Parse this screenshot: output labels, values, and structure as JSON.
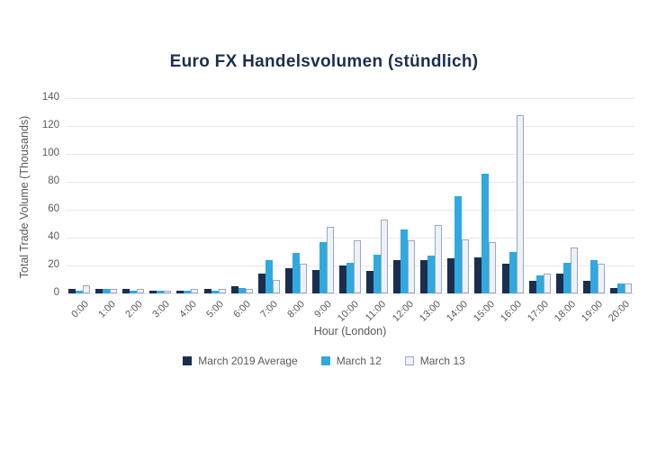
{
  "colors": {
    "title_text": "#1b2f4e",
    "axis_text": "#595959",
    "gridline": "#e8e8e8",
    "background": "#ffffff"
  },
  "chart_data": {
    "type": "bar",
    "title": "Euro FX Handelsvolumen (stündlich)",
    "xlabel": "Hour (London)",
    "ylabel": "Total Trade Volume (Thousands)",
    "ylim": [
      0,
      140
    ],
    "yticks": [
      0,
      20,
      40,
      60,
      80,
      100,
      120,
      140
    ],
    "grid": true,
    "legend_position": "bottom",
    "categories": [
      "0:00",
      "1:00",
      "2:00",
      "3:00",
      "4:00",
      "5:00",
      "6:00",
      "7:00",
      "8:00",
      "9:00",
      "10:00",
      "11:00",
      "12:00",
      "13:00",
      "14:00",
      "15:00",
      "16:00",
      "17:00",
      "18:00",
      "19:00",
      "20:00"
    ],
    "series": [
      {
        "name": "March 2019 Average",
        "color": "#1b2e4e",
        "values": [
          3,
          3,
          3,
          2,
          2,
          3,
          5,
          14,
          18,
          17,
          20,
          16,
          24,
          24,
          25,
          26,
          21,
          9,
          14,
          9,
          4
        ]
      },
      {
        "name": "March 12",
        "color": "#2fa9de",
        "values": [
          2,
          3,
          2,
          2,
          2,
          2,
          4,
          24,
          29,
          37,
          22,
          28,
          46,
          27,
          70,
          86,
          30,
          13,
          22,
          24,
          7
        ]
      },
      {
        "name": "March 13",
        "color": "#eef1f6",
        "border": "#9aa8c0",
        "values": [
          6,
          3,
          3,
          2,
          3,
          3,
          3,
          10,
          21,
          48,
          38,
          53,
          38,
          49,
          39,
          37,
          128,
          14,
          33,
          21,
          7
        ]
      }
    ]
  }
}
